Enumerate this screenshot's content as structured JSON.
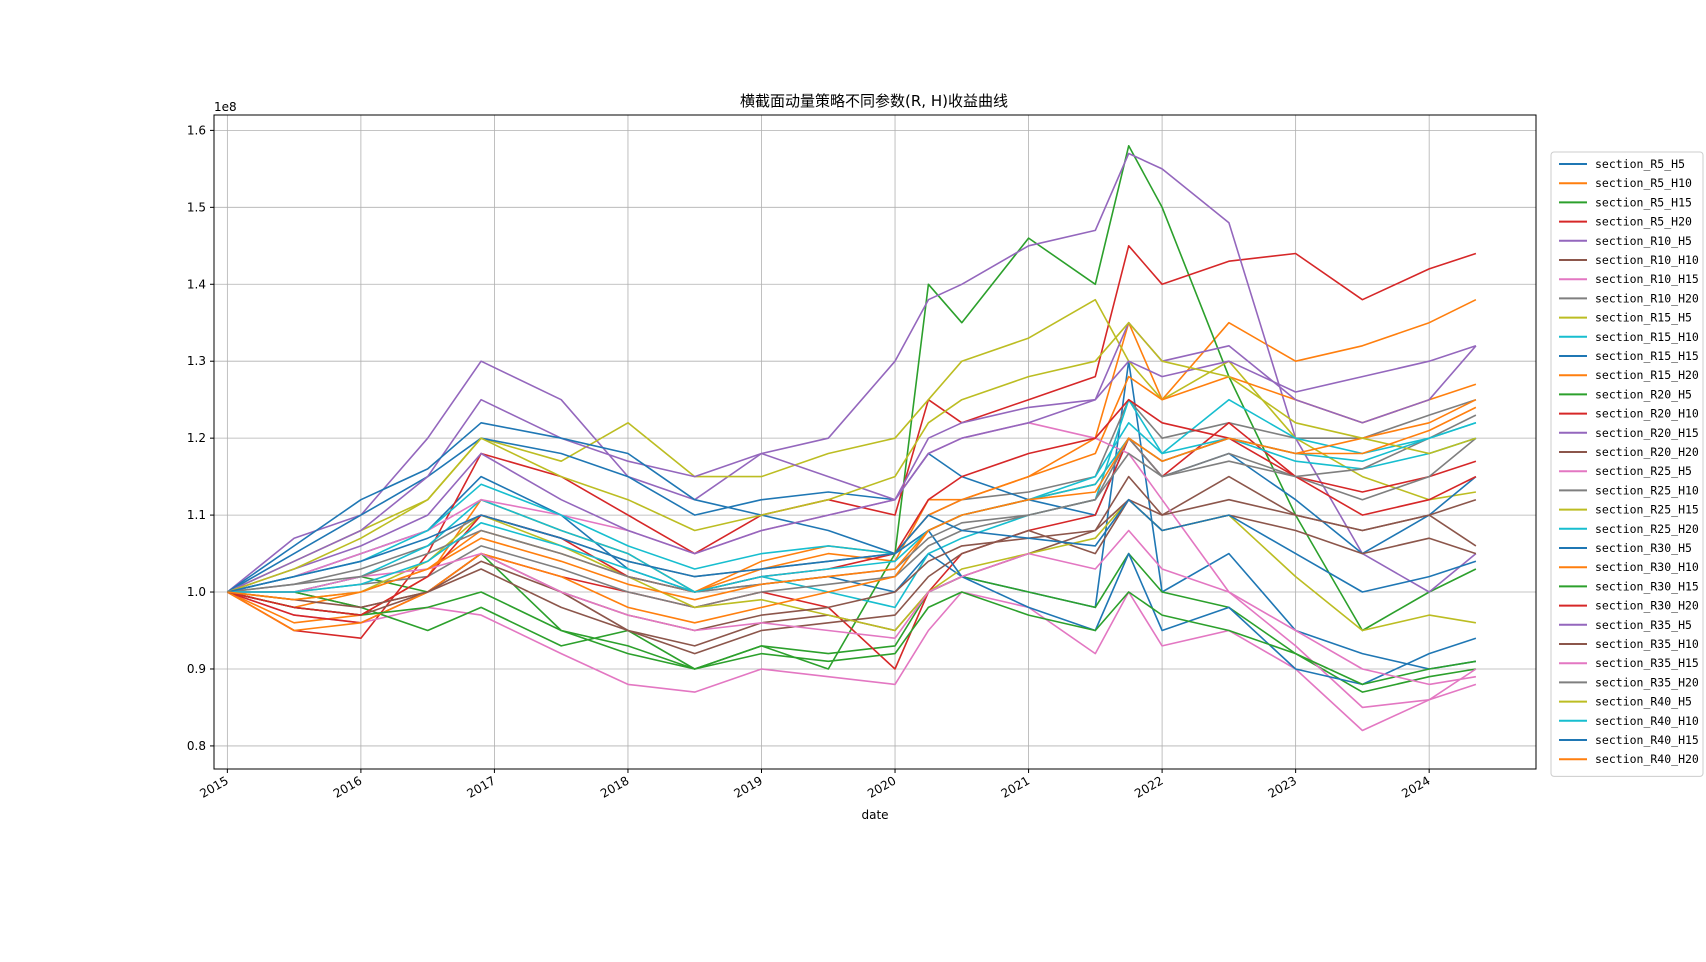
{
  "chart_data": {
    "type": "line",
    "title": "横截面动量策略不同参数(R, H)收益曲线",
    "xlabel": "date",
    "ylabel": "",
    "y_offset_label": "1e8",
    "xlim": [
      2014.9,
      2024.8
    ],
    "ylim": [
      0.77,
      1.62
    ],
    "grid": true,
    "legend_placement": "right outside",
    "x_ticks": [
      "2015",
      "2016",
      "2017",
      "2018",
      "2019",
      "2020",
      "2021",
      "2022",
      "2023",
      "2024"
    ],
    "y_ticks": [
      {
        "value": 0.8,
        "label": "0.8"
      },
      {
        "value": 0.9,
        "label": "0.9"
      },
      {
        "value": 1.0,
        "label": "1.0"
      },
      {
        "value": 1.1,
        "label": "1.1"
      },
      {
        "value": 1.2,
        "label": "1.2"
      },
      {
        "value": 1.3,
        "label": "1.3"
      },
      {
        "value": 1.4,
        "label": "1.4"
      },
      {
        "value": 1.5,
        "label": "1.5"
      },
      {
        "value": 1.6,
        "label": "1.6"
      }
    ],
    "x": [
      2015.0,
      2015.5,
      2016.0,
      2016.5,
      2016.9,
      2017.5,
      2018.0,
      2018.5,
      2019.0,
      2019.5,
      2020.0,
      2020.25,
      2020.5,
      2021.0,
      2021.5,
      2021.75,
      2022.0,
      2022.5,
      2023.0,
      2023.5,
      2024.0,
      2024.35
    ],
    "series": [
      {
        "name": "section_R5_H5",
        "color": "#1f77b4",
        "values": [
          1.0,
          1.02,
          1.05,
          1.08,
          1.15,
          1.1,
          1.03,
          1.0,
          1.01,
          1.02,
          1.0,
          1.05,
          1.02,
          1.0,
          0.98,
          1.3,
          1.0,
          1.05,
          0.95,
          0.92,
          0.9,
          0.91
        ]
      },
      {
        "name": "section_R5_H10",
        "color": "#ff7f0e",
        "values": [
          1.0,
          0.96,
          0.97,
          1.02,
          1.12,
          1.08,
          1.05,
          1.0,
          1.03,
          1.05,
          1.04,
          1.12,
          1.12,
          1.15,
          1.2,
          1.35,
          1.25,
          1.35,
          1.3,
          1.32,
          1.35,
          1.38
        ]
      },
      {
        "name": "section_R5_H15",
        "color": "#2ca02c",
        "values": [
          1.0,
          1.0,
          1.02,
          1.0,
          1.05,
          0.95,
          0.92,
          0.9,
          0.93,
          0.9,
          1.05,
          1.4,
          1.35,
          1.46,
          1.4,
          1.58,
          1.5,
          1.28,
          1.1,
          0.95,
          1.0,
          1.03
        ]
      },
      {
        "name": "section_R5_H20",
        "color": "#d62728",
        "values": [
          1.0,
          0.95,
          0.94,
          1.05,
          1.18,
          1.15,
          1.1,
          1.05,
          1.1,
          1.12,
          1.1,
          1.25,
          1.22,
          1.25,
          1.28,
          1.45,
          1.4,
          1.43,
          1.44,
          1.38,
          1.42,
          1.44
        ]
      },
      {
        "name": "section_R10_H5",
        "color": "#9467bd",
        "values": [
          1.0,
          1.07,
          1.1,
          1.2,
          1.3,
          1.25,
          1.15,
          1.12,
          1.18,
          1.2,
          1.3,
          1.38,
          1.4,
          1.45,
          1.47,
          1.57,
          1.55,
          1.48,
          1.2,
          1.05,
          1.0,
          1.05
        ]
      },
      {
        "name": "section_R10_H10",
        "color": "#8c564b",
        "values": [
          1.0,
          1.0,
          0.98,
          1.0,
          1.05,
          1.0,
          0.95,
          0.93,
          0.96,
          0.97,
          0.95,
          1.0,
          1.02,
          1.05,
          1.08,
          1.15,
          1.1,
          1.15,
          1.1,
          1.08,
          1.1,
          1.06
        ]
      },
      {
        "name": "section_R10_H15",
        "color": "#e377c2",
        "values": [
          1.0,
          0.97,
          0.96,
          0.98,
          0.97,
          0.92,
          0.88,
          0.87,
          0.9,
          0.89,
          0.88,
          0.95,
          1.0,
          0.98,
          0.92,
          1.0,
          0.93,
          0.95,
          0.9,
          0.82,
          0.86,
          0.88
        ]
      },
      {
        "name": "section_R10_H20",
        "color": "#7f7f7f",
        "values": [
          1.0,
          1.01,
          1.03,
          1.06,
          1.1,
          1.07,
          1.04,
          1.02,
          1.03,
          1.04,
          1.05,
          1.1,
          1.12,
          1.13,
          1.15,
          1.25,
          1.2,
          1.22,
          1.2,
          1.2,
          1.23,
          1.25
        ]
      },
      {
        "name": "section_R15_H5",
        "color": "#bcbd22",
        "values": [
          1.0,
          1.04,
          1.08,
          1.12,
          1.2,
          1.17,
          1.22,
          1.15,
          1.15,
          1.18,
          1.2,
          1.25,
          1.3,
          1.33,
          1.38,
          1.3,
          1.25,
          1.3,
          1.2,
          1.15,
          1.12,
          1.13
        ]
      },
      {
        "name": "section_R15_H10",
        "color": "#17becf",
        "values": [
          1.0,
          1.0,
          1.02,
          1.06,
          1.12,
          1.08,
          1.05,
          1.0,
          1.02,
          1.0,
          0.98,
          1.05,
          1.07,
          1.1,
          1.12,
          1.25,
          1.18,
          1.25,
          1.2,
          1.18,
          1.2,
          1.22
        ]
      },
      {
        "name": "section_R15_H15",
        "color": "#1f77b4",
        "values": [
          1.0,
          1.05,
          1.1,
          1.15,
          1.2,
          1.18,
          1.15,
          1.1,
          1.12,
          1.13,
          1.12,
          1.18,
          1.15,
          1.12,
          1.1,
          1.2,
          1.15,
          1.18,
          1.12,
          1.05,
          1.1,
          1.15
        ]
      },
      {
        "name": "section_R15_H20",
        "color": "#ff7f0e",
        "values": [
          1.0,
          0.98,
          1.0,
          1.03,
          1.08,
          1.05,
          1.02,
          1.0,
          1.04,
          1.06,
          1.05,
          1.1,
          1.12,
          1.15,
          1.18,
          1.28,
          1.25,
          1.28,
          1.25,
          1.22,
          1.25,
          1.27
        ]
      },
      {
        "name": "section_R20_H5",
        "color": "#2ca02c",
        "values": [
          1.0,
          1.0,
          0.98,
          0.95,
          0.98,
          0.93,
          0.95,
          0.9,
          0.93,
          0.92,
          0.93,
          1.0,
          1.02,
          1.0,
          0.98,
          1.05,
          1.0,
          0.98,
          0.92,
          0.87,
          0.89,
          0.9
        ]
      },
      {
        "name": "section_R20_H10",
        "color": "#d62728",
        "values": [
          1.0,
          0.97,
          0.96,
          1.0,
          1.05,
          1.02,
          1.0,
          0.98,
          1.0,
          0.98,
          0.9,
          1.0,
          1.05,
          1.08,
          1.1,
          1.2,
          1.15,
          1.22,
          1.15,
          1.13,
          1.15,
          1.17
        ]
      },
      {
        "name": "section_R20_H15",
        "color": "#9467bd",
        "values": [
          1.0,
          1.04,
          1.08,
          1.15,
          1.25,
          1.2,
          1.17,
          1.15,
          1.18,
          1.15,
          1.12,
          1.2,
          1.22,
          1.24,
          1.25,
          1.35,
          1.3,
          1.32,
          1.25,
          1.22,
          1.25,
          1.32
        ]
      },
      {
        "name": "section_R20_H20",
        "color": "#8c564b",
        "values": [
          1.0,
          0.98,
          0.97,
          1.0,
          1.03,
          0.98,
          0.95,
          0.92,
          0.95,
          0.96,
          0.97,
          1.02,
          1.05,
          1.08,
          1.05,
          1.12,
          1.08,
          1.1,
          1.08,
          1.05,
          1.07,
          1.05
        ]
      },
      {
        "name": "section_R25_H5",
        "color": "#e377c2",
        "values": [
          1.0,
          1.02,
          1.05,
          1.08,
          1.12,
          1.1,
          1.08,
          1.05,
          1.08,
          1.1,
          1.12,
          1.18,
          1.2,
          1.22,
          1.2,
          1.18,
          1.12,
          1.0,
          0.93,
          0.85,
          0.86,
          0.9
        ]
      },
      {
        "name": "section_R25_H10",
        "color": "#7f7f7f",
        "values": [
          1.0,
          1.0,
          1.01,
          1.02,
          1.06,
          1.03,
          1.0,
          0.98,
          1.0,
          1.01,
          1.02,
          1.06,
          1.08,
          1.1,
          1.12,
          1.2,
          1.15,
          1.18,
          1.15,
          1.12,
          1.15,
          1.2
        ]
      },
      {
        "name": "section_R25_H15",
        "color": "#bcbd22",
        "values": [
          1.0,
          0.99,
          1.0,
          1.04,
          1.1,
          1.06,
          1.02,
          0.98,
          0.99,
          0.97,
          0.95,
          1.0,
          1.03,
          1.05,
          1.07,
          1.12,
          1.08,
          1.1,
          1.02,
          0.95,
          0.97,
          0.96
        ]
      },
      {
        "name": "section_R25_H20",
        "color": "#17becf",
        "values": [
          1.0,
          1.02,
          1.04,
          1.08,
          1.14,
          1.1,
          1.06,
          1.03,
          1.05,
          1.06,
          1.05,
          1.08,
          1.1,
          1.12,
          1.15,
          1.22,
          1.18,
          1.2,
          1.17,
          1.16,
          1.18,
          1.2
        ]
      },
      {
        "name": "section_R30_H5",
        "color": "#1f77b4",
        "values": [
          1.0,
          1.06,
          1.12,
          1.16,
          1.22,
          1.2,
          1.18,
          1.12,
          1.1,
          1.08,
          1.05,
          1.08,
          1.02,
          0.98,
          0.95,
          1.05,
          0.95,
          0.98,
          0.9,
          0.88,
          0.92,
          0.94
        ]
      },
      {
        "name": "section_R30_H10",
        "color": "#ff7f0e",
        "values": [
          1.0,
          0.95,
          0.96,
          1.0,
          1.05,
          1.02,
          0.98,
          0.96,
          0.98,
          1.0,
          1.02,
          1.08,
          1.1,
          1.12,
          1.14,
          1.2,
          1.17,
          1.2,
          1.18,
          1.2,
          1.22,
          1.25
        ]
      },
      {
        "name": "section_R30_H15",
        "color": "#2ca02c",
        "values": [
          1.0,
          0.98,
          0.97,
          0.98,
          1.0,
          0.95,
          0.93,
          0.9,
          0.92,
          0.91,
          0.92,
          0.98,
          1.0,
          0.97,
          0.95,
          1.0,
          0.97,
          0.95,
          0.92,
          0.88,
          0.9,
          0.91
        ]
      },
      {
        "name": "section_R30_H20",
        "color": "#d62728",
        "values": [
          1.0,
          0.98,
          0.97,
          1.02,
          1.1,
          1.07,
          1.02,
          1.0,
          1.02,
          1.03,
          1.05,
          1.12,
          1.15,
          1.18,
          1.2,
          1.25,
          1.22,
          1.2,
          1.15,
          1.1,
          1.12,
          1.15
        ]
      },
      {
        "name": "section_R35_H5",
        "color": "#9467bd",
        "values": [
          1.0,
          1.03,
          1.06,
          1.1,
          1.18,
          1.12,
          1.08,
          1.05,
          1.08,
          1.1,
          1.12,
          1.18,
          1.2,
          1.22,
          1.25,
          1.3,
          1.28,
          1.3,
          1.26,
          1.28,
          1.3,
          1.32
        ]
      },
      {
        "name": "section_R35_H10",
        "color": "#8c564b",
        "values": [
          1.0,
          0.99,
          0.98,
          1.0,
          1.04,
          1.0,
          0.97,
          0.95,
          0.97,
          0.98,
          1.0,
          1.04,
          1.06,
          1.07,
          1.08,
          1.12,
          1.1,
          1.12,
          1.1,
          1.08,
          1.1,
          1.12
        ]
      },
      {
        "name": "section_R35_H15",
        "color": "#e377c2",
        "values": [
          1.0,
          1.0,
          1.02,
          1.03,
          1.05,
          1.0,
          0.97,
          0.95,
          0.96,
          0.95,
          0.94,
          1.0,
          1.02,
          1.05,
          1.03,
          1.08,
          1.03,
          1.0,
          0.95,
          0.9,
          0.88,
          0.89
        ]
      },
      {
        "name": "section_R35_H20",
        "color": "#7f7f7f",
        "values": [
          1.0,
          1.01,
          1.02,
          1.05,
          1.08,
          1.05,
          1.02,
          1.0,
          1.01,
          1.02,
          1.03,
          1.07,
          1.09,
          1.1,
          1.12,
          1.18,
          1.15,
          1.17,
          1.15,
          1.16,
          1.2,
          1.23
        ]
      },
      {
        "name": "section_R40_H5",
        "color": "#bcbd22",
        "values": [
          1.0,
          1.03,
          1.07,
          1.12,
          1.2,
          1.15,
          1.12,
          1.08,
          1.1,
          1.12,
          1.15,
          1.22,
          1.25,
          1.28,
          1.3,
          1.35,
          1.3,
          1.28,
          1.22,
          1.2,
          1.18,
          1.2
        ]
      },
      {
        "name": "section_R40_H10",
        "color": "#17becf",
        "values": [
          1.0,
          1.0,
          1.01,
          1.04,
          1.09,
          1.06,
          1.03,
          1.0,
          1.02,
          1.03,
          1.04,
          1.08,
          1.1,
          1.12,
          1.14,
          1.2,
          1.17,
          1.2,
          1.18,
          1.17,
          1.2,
          1.22
        ]
      },
      {
        "name": "section_R40_H15",
        "color": "#1f77b4",
        "values": [
          1.0,
          1.02,
          1.04,
          1.07,
          1.1,
          1.07,
          1.04,
          1.02,
          1.03,
          1.04,
          1.05,
          1.1,
          1.08,
          1.07,
          1.06,
          1.12,
          1.08,
          1.1,
          1.05,
          1.0,
          1.02,
          1.04
        ]
      },
      {
        "name": "section_R40_H20",
        "color": "#ff7f0e",
        "values": [
          1.0,
          0.99,
          1.0,
          1.03,
          1.07,
          1.04,
          1.01,
          0.99,
          1.01,
          1.02,
          1.03,
          1.08,
          1.1,
          1.12,
          1.13,
          1.2,
          1.17,
          1.2,
          1.18,
          1.18,
          1.21,
          1.24
        ]
      }
    ]
  }
}
